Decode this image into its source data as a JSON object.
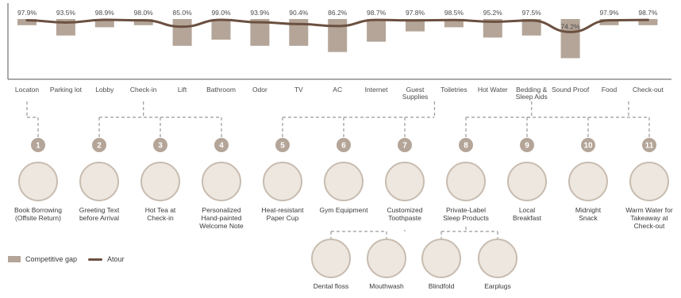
{
  "chart_data": {
    "type": "bar+line",
    "categories": [
      "Locaton",
      "Parking lot",
      "Lobby",
      "Check-in",
      "Lift",
      "Bathroom",
      "Odor",
      "TV",
      "AC",
      "Internet",
      "Guest Supplies",
      "Toiletries",
      "Hot Water",
      "Bedding & Sleep Aids",
      "Sound Proof",
      "Food",
      "Check-out"
    ],
    "value_labels": [
      "97.9%",
      "93.5%",
      "98.9%",
      "98.0%",
      "85.0%",
      "99.0%",
      "93.9%",
      "90.4%",
      "86.2%",
      "98.7%",
      "97.8%",
      "98.5%",
      "95.2%",
      "97.5%",
      "74.2%",
      "97.9%",
      "98.7%"
    ],
    "line_values": [
      97.9,
      93.5,
      98.9,
      98.0,
      85.0,
      99.0,
      93.9,
      90.4,
      86.2,
      98.7,
      97.8,
      98.5,
      95.2,
      97.5,
      74.2,
      97.9,
      98.7
    ],
    "gap_values": [
      3.0,
      8.0,
      4.0,
      3.0,
      13.0,
      10.0,
      13.0,
      13.0,
      16.0,
      11.0,
      6.0,
      4.0,
      9.0,
      8.0,
      19.0,
      3.0,
      3.0
    ],
    "series": [
      {
        "name": "Competitive gap",
        "kind": "bar",
        "color": "#b4a598"
      },
      {
        "name": "Atour",
        "kind": "line",
        "color": "#6b5040"
      }
    ],
    "legend_position": "bottom-left",
    "grid": false
  },
  "groups": [
    {
      "from": 0,
      "to": 0,
      "items": [
        0
      ]
    },
    {
      "from": 2,
      "to": 4,
      "items": [
        1,
        2,
        3
      ]
    },
    {
      "from": 10,
      "to": 11,
      "items": [
        4,
        5,
        6
      ]
    },
    {
      "from": 13,
      "to": 13,
      "items": [
        7
      ]
    },
    {
      "from": 15,
      "to": 16,
      "items": [
        8,
        9,
        10
      ]
    }
  ],
  "initiatives": [
    {
      "num": "1",
      "label": [
        "Book Borrowing",
        "(Offsite Return)"
      ],
      "icon": "bookshelf-icon"
    },
    {
      "num": "2",
      "label": [
        "Greeting Text",
        "before Arrival"
      ],
      "icon": "phone-message-icon"
    },
    {
      "num": "3",
      "label": [
        "Hot Tea at",
        "Check-in"
      ],
      "icon": "tea-cup-icon"
    },
    {
      "num": "4",
      "label": [
        "Personalized",
        "Hand-painted",
        "Welcome Note"
      ],
      "icon": "welcome-note-icon"
    },
    {
      "num": "5",
      "label": [
        "Heat-resistant",
        "Paper Cup"
      ],
      "icon": "paper-cup-icon"
    },
    {
      "num": "6",
      "label": [
        "Gym Equipment"
      ],
      "icon": "gym-icon"
    },
    {
      "num": "7",
      "label": [
        "Customized",
        "Toothpaste"
      ],
      "icon": "toothpaste-icon"
    },
    {
      "num": "8",
      "label": [
        "Private-Label",
        "Sleep Products"
      ],
      "icon": "sleep-icon"
    },
    {
      "num": "9",
      "label": [
        "Local",
        "Breakfast"
      ],
      "icon": "breakfast-icon"
    },
    {
      "num": "10",
      "label": [
        "Midnight",
        "Snack"
      ],
      "icon": "snack-icon"
    },
    {
      "num": "11",
      "label": [
        "Warm Water for",
        "Takeaway at",
        "Check-out"
      ],
      "icon": "water-fridge-icon"
    }
  ],
  "sub_items": [
    {
      "parent": 6,
      "label": "Dental floss",
      "icon": "dental-floss-icon"
    },
    {
      "parent": 6,
      "label": "Mouthwash",
      "icon": "mouthwash-icon"
    },
    {
      "parent": 7,
      "label": "Blindfold",
      "icon": "blindfold-icon"
    },
    {
      "parent": 7,
      "label": "Earplugs",
      "icon": "earplugs-icon"
    }
  ],
  "legend": {
    "gap": "Competitive gap",
    "line": "Atour"
  },
  "colors": {
    "bar": "#b4a598",
    "line": "#6b5040",
    "badge": "#b4a598",
    "dash": "#9a9a9a",
    "icon_bg": "#ede7df",
    "icon_ring": "#c8bcb0"
  }
}
